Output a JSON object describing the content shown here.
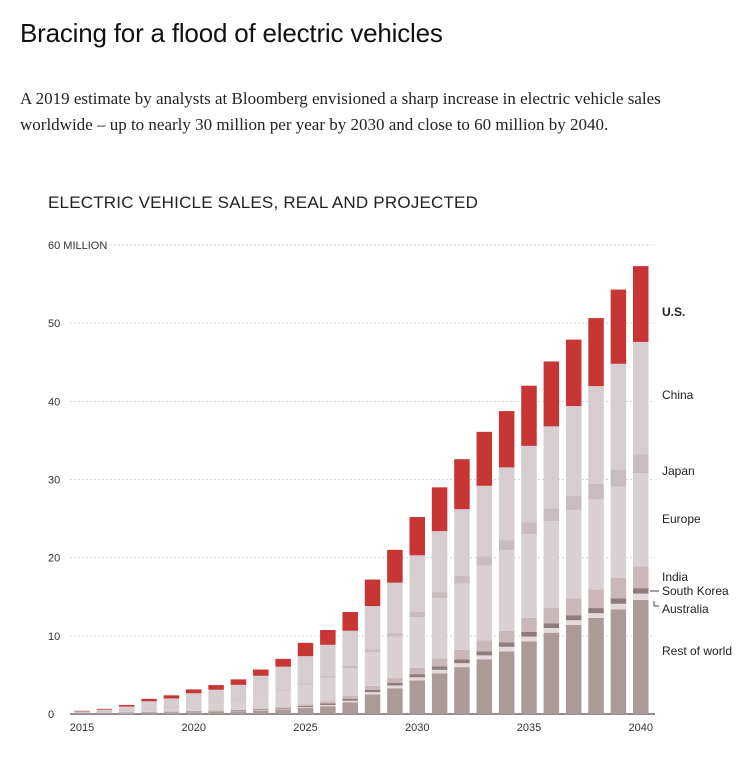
{
  "headline": "Bracing for a flood of electric vehicles",
  "dek": "A 2019 estimate by analysts at Bloomberg envisioned a sharp increase in electric vehicle sales worldwide – up to nearly 30 million per year by 2030 and close to 60 million by 2040.",
  "chart_data": {
    "type": "bar",
    "stacked": true,
    "title": "ELECTRIC VEHICLE SALES, REAL AND PROJECTED",
    "ylim": [
      0,
      60
    ],
    "y_ticks": [
      {
        "value": 0,
        "label": "0"
      },
      {
        "value": 10,
        "label": "10"
      },
      {
        "value": 20,
        "label": "20"
      },
      {
        "value": 30,
        "label": "30"
      },
      {
        "value": 40,
        "label": "40"
      },
      {
        "value": 50,
        "label": "50"
      },
      {
        "value": 60,
        "label": "60 MILLION"
      }
    ],
    "x_ticks": [
      "2015",
      "2020",
      "2025",
      "2030",
      "2035",
      "2040"
    ],
    "grid": true,
    "legend_placement": "right",
    "categories": [
      "2015",
      "2016",
      "2017",
      "2018",
      "2019",
      "2020",
      "2021",
      "2022",
      "2023",
      "2024",
      "2025",
      "2026",
      "2027",
      "2028",
      "2029",
      "2030",
      "2031",
      "2032",
      "2033",
      "2034",
      "2035",
      "2036",
      "2037",
      "2038",
      "2039",
      "2040"
    ],
    "series": [
      {
        "name": "Rest of world",
        "color": "#ab9b98",
        "values": [
          0.1,
          0.1,
          0.15,
          0.2,
          0.2,
          0.25,
          0.3,
          0.35,
          0.45,
          0.6,
          0.8,
          1.0,
          1.5,
          2.5,
          3.3,
          4.3,
          5.2,
          6.0,
          7.0,
          8.0,
          9.3,
          10.4,
          11.4,
          12.3,
          13.4,
          14.6
        ]
      },
      {
        "name": "Australia",
        "color": "#e4dadb",
        "values": [
          0.02,
          0.02,
          0.03,
          0.03,
          0.04,
          0.05,
          0.05,
          0.05,
          0.06,
          0.08,
          0.1,
          0.15,
          0.2,
          0.3,
          0.35,
          0.4,
          0.45,
          0.5,
          0.5,
          0.6,
          0.6,
          0.6,
          0.6,
          0.6,
          0.7,
          0.8
        ]
      },
      {
        "name": "South Korea",
        "color": "#8e7b7c",
        "values": [
          0.02,
          0.02,
          0.03,
          0.03,
          0.05,
          0.05,
          0.05,
          0.05,
          0.08,
          0.1,
          0.15,
          0.2,
          0.25,
          0.3,
          0.35,
          0.4,
          0.45,
          0.5,
          0.5,
          0.55,
          0.6,
          0.6,
          0.6,
          0.65,
          0.7,
          0.7
        ]
      },
      {
        "name": "India",
        "color": "#c9b7b9",
        "values": [
          0,
          0,
          0.02,
          0.03,
          0.05,
          0.05,
          0.05,
          0.08,
          0.1,
          0.15,
          0.2,
          0.3,
          0.4,
          0.5,
          0.6,
          0.8,
          1.0,
          1.2,
          1.4,
          1.5,
          1.8,
          2.0,
          2.2,
          2.4,
          2.6,
          2.8
        ]
      },
      {
        "name": "Europe",
        "color": "#d9d0d2",
        "values": [
          0.1,
          0.15,
          0.2,
          0.3,
          0.5,
          0.8,
          1.0,
          1.2,
          1.6,
          2.0,
          2.5,
          3.0,
          3.5,
          4.3,
          5.3,
          6.5,
          7.7,
          8.5,
          9.6,
          10.3,
          10.7,
          11.1,
          11.3,
          11.5,
          11.7,
          11.9
        ]
      },
      {
        "name": "Japan",
        "color": "#c9bcbe",
        "values": [
          0.02,
          0.02,
          0.03,
          0.04,
          0.05,
          0.05,
          0.05,
          0.1,
          0.1,
          0.12,
          0.15,
          0.2,
          0.3,
          0.4,
          0.5,
          0.7,
          0.8,
          1.0,
          1.2,
          1.3,
          1.5,
          1.6,
          1.8,
          2.0,
          2.2,
          2.4
        ]
      },
      {
        "name": "China",
        "color": "#d5cdcf",
        "values": [
          0.1,
          0.25,
          0.5,
          1.0,
          1.1,
          1.4,
          1.6,
          1.9,
          2.5,
          3.0,
          3.5,
          4.0,
          4.5,
          5.5,
          6.4,
          7.2,
          7.8,
          8.5,
          9.0,
          9.3,
          9.8,
          10.5,
          11.5,
          12.5,
          13.5,
          14.4
        ]
      },
      {
        "name": "U.S.",
        "color": "#c73535",
        "values": [
          0.05,
          0.1,
          0.2,
          0.3,
          0.4,
          0.5,
          0.6,
          0.7,
          0.8,
          1.0,
          1.7,
          1.9,
          2.4,
          3.4,
          4.2,
          4.9,
          5.6,
          6.4,
          6.9,
          7.2,
          7.7,
          8.3,
          8.5,
          8.7,
          9.5,
          9.7
        ]
      }
    ]
  }
}
